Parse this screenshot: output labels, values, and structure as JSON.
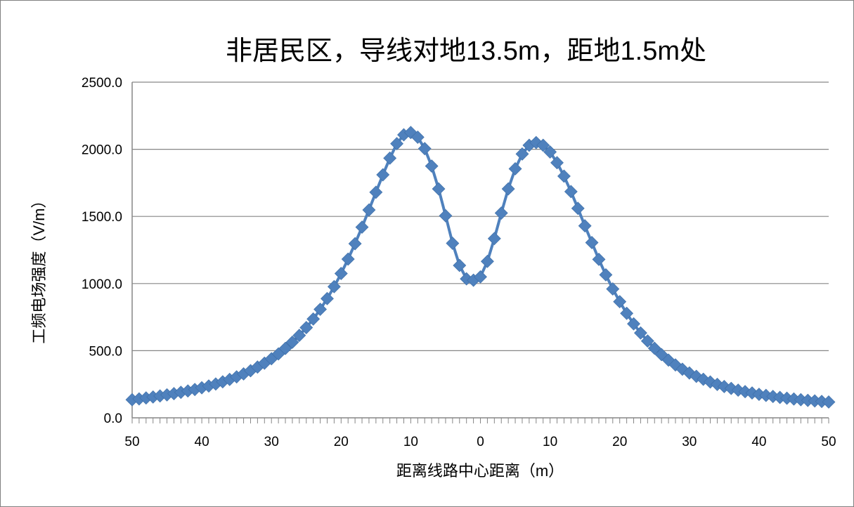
{
  "chart_data": {
    "type": "line",
    "title": "非居民区，导线对地13.5m，距地1.5m处",
    "xlabel": "距离线路中心距离（m）",
    "ylabel": "工频电场强度（V/m）",
    "ylim": [
      0,
      2500
    ],
    "xlim": [
      -50,
      50
    ],
    "y_ticks": [
      "0.0",
      "500.0",
      "1000.0",
      "1500.0",
      "2000.0",
      "2500.0"
    ],
    "x_ticks": [
      "50",
      "40",
      "30",
      "20",
      "10",
      "0",
      "10",
      "20",
      "30",
      "40",
      "50"
    ],
    "grid": true,
    "legend": "none",
    "marker": "diamond",
    "series": [
      {
        "color": "#4F81BD",
        "x": [
          -50,
          -49,
          -48,
          -47,
          -46,
          -45,
          -44,
          -43,
          -42,
          -41,
          -40,
          -39,
          -38,
          -37,
          -36,
          -35,
          -34,
          -33,
          -32,
          -31,
          -30,
          -29,
          -28,
          -27,
          -26,
          -25,
          -24,
          -23,
          -22,
          -21,
          -20,
          -19,
          -18,
          -17,
          -16,
          -15,
          -14,
          -13,
          -12,
          -11,
          -10,
          -9,
          -8,
          -7,
          -6,
          -5,
          -4,
          -3,
          -2,
          -1,
          0,
          1,
          2,
          3,
          4,
          5,
          6,
          7,
          8,
          9,
          10,
          11,
          12,
          13,
          14,
          15,
          16,
          17,
          18,
          19,
          20,
          21,
          22,
          23,
          24,
          25,
          26,
          27,
          28,
          29,
          30,
          31,
          32,
          33,
          34,
          35,
          36,
          37,
          38,
          39,
          40,
          41,
          42,
          43,
          44,
          45,
          46,
          47,
          48,
          49,
          50
        ],
        "y": [
          135,
          141,
          148,
          155,
          163,
          171,
          180,
          190,
          200,
          211,
          224,
          237,
          252,
          268,
          286,
          305,
          327,
          351,
          378,
          407,
          440,
          476,
          517,
          563,
          614,
          672,
          736,
          808,
          888,
          977,
          1075,
          1182,
          1297,
          1420,
          1548,
          1680,
          1810,
          1934,
          2042,
          2108,
          2125,
          2090,
          2005,
          1875,
          1705,
          1505,
          1300,
          1135,
          1035,
          1025,
          1050,
          1165,
          1335,
          1525,
          1705,
          1855,
          1965,
          2030,
          2050,
          2030,
          1980,
          1900,
          1800,
          1685,
          1560,
          1430,
          1305,
          1180,
          1065,
          960,
          865,
          778,
          700,
          632,
          572,
          518,
          471,
          430,
          394,
          362,
          334,
          309,
          287,
          267,
          249,
          233,
          219,
          206,
          195,
          185,
          175,
          167,
          159,
          152,
          146,
          140,
          135,
          130,
          126,
          122,
          118
        ]
      }
    ]
  }
}
